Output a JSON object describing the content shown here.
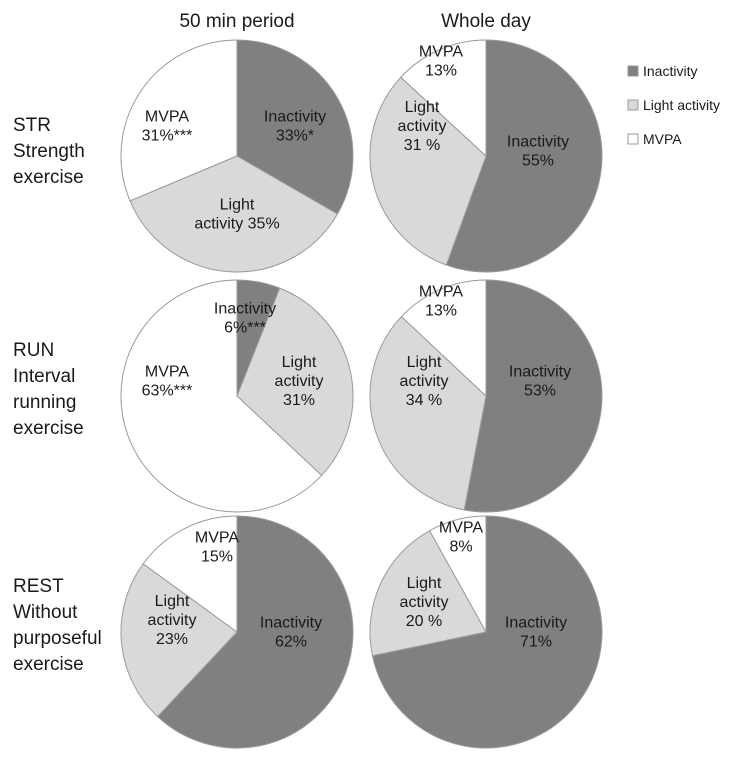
{
  "columns": [
    "50 min period",
    "Whole day"
  ],
  "rows": [
    {
      "label": [
        "STR",
        "Strength",
        "exercise"
      ]
    },
    {
      "label": [
        "RUN",
        "Interval",
        "running",
        "exercise"
      ]
    },
    {
      "label": [
        "REST",
        "Without",
        "purposeful",
        "exercise"
      ]
    }
  ],
  "legend": [
    "Inactivity",
    "Light activity",
    "MVPA"
  ],
  "colors": {
    "Inactivity": "#808080",
    "Light activity": "#d9d9d9",
    "MVPA": "#ffffff",
    "stroke": "#9a9a9a"
  },
  "chart_data": [
    {
      "type": "pie",
      "row": "STR",
      "column": "50 min period",
      "categories": [
        "Inactivity",
        "Light activity",
        "MVPA"
      ],
      "values": [
        33,
        35,
        31
      ],
      "labels": [
        [
          "Inactivity",
          "33%*"
        ],
        [
          "Light",
          "activity 35%"
        ],
        [
          "MVPA",
          "31%***"
        ]
      ]
    },
    {
      "type": "pie",
      "row": "STR",
      "column": "Whole day",
      "categories": [
        "Inactivity",
        "Light activity",
        "MVPA"
      ],
      "values": [
        55,
        31,
        13
      ],
      "labels": [
        [
          "Inactivity",
          "55%"
        ],
        [
          "Light",
          "activity",
          "31 %"
        ],
        [
          "MVPA",
          "13%"
        ]
      ]
    },
    {
      "type": "pie",
      "row": "RUN",
      "column": "50 min period",
      "categories": [
        "Inactivity",
        "Light activity",
        "MVPA"
      ],
      "values": [
        6,
        31,
        63
      ],
      "labels": [
        [
          "Inactivity",
          "6%***"
        ],
        [
          "Light",
          "activity",
          "31%"
        ],
        [
          "MVPA",
          "63%***"
        ]
      ]
    },
    {
      "type": "pie",
      "row": "RUN",
      "column": "Whole day",
      "categories": [
        "Inactivity",
        "Light activity",
        "MVPA"
      ],
      "values": [
        53,
        34,
        13
      ],
      "labels": [
        [
          "Inactivity",
          "53%"
        ],
        [
          "Light",
          "activity",
          "34 %"
        ],
        [
          "MVPA",
          "13%"
        ]
      ]
    },
    {
      "type": "pie",
      "row": "REST",
      "column": "50 min period",
      "categories": [
        "Inactivity",
        "Light activity",
        "MVPA"
      ],
      "values": [
        62,
        23,
        15
      ],
      "labels": [
        [
          "Inactivity",
          "62%"
        ],
        [
          "Light",
          "activity",
          "23%"
        ],
        [
          "MVPA",
          "15%"
        ]
      ]
    },
    {
      "type": "pie",
      "row": "REST",
      "column": "Whole day",
      "categories": [
        "Inactivity",
        "Light activity",
        "MVPA"
      ],
      "values": [
        71,
        20,
        8
      ],
      "labels": [
        [
          "Inactivity",
          "71%"
        ],
        [
          "Light",
          "activity",
          "20 %"
        ],
        [
          "MVPA",
          "8%"
        ]
      ]
    }
  ]
}
